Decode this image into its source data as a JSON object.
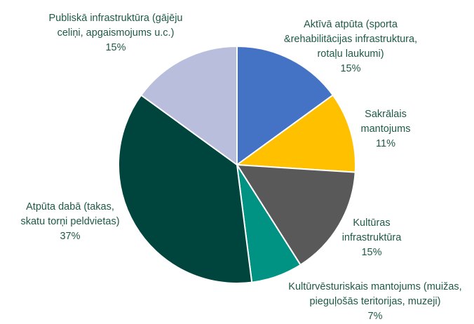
{
  "chart_data": {
    "type": "pie",
    "categories": [
      "Aktīvā atpūta (sporta\n&rehabilitācijas infrastruktura,\nrotaļu laukumi)",
      "Sakrālais\nmantojums",
      "Kultūras\ninfrastruktūra",
      "Kultūrvēsturiskais mantojums (muižas,\npieguļošās teritorijas, muzeji)",
      "Atpūta dabā (takas,\nskatu torņi peldvietas)",
      "Publiskā infrastruktūra (gājēju\nceliņi, apgaismojums u.c.)"
    ],
    "values": [
      15,
      11,
      15,
      7,
      37,
      15
    ],
    "value_labels": [
      "15%",
      "11%",
      "15%",
      "7%",
      "37%",
      "15%"
    ],
    "colors": [
      "#4472c4",
      "#ffc000",
      "#595959",
      "#009384",
      "#00443e",
      "#b8bedc"
    ]
  }
}
